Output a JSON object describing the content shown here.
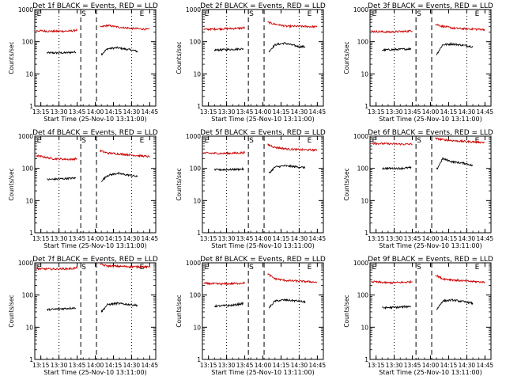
{
  "chart_data": [
    {
      "type": "line",
      "title": "Det 1f BLACK = Events, RED = LLD",
      "xlabel": "Start Time (25-Nov-10 13:11:00)",
      "ylabel": "Counts/sec",
      "yscale": "log",
      "ylim": [
        1,
        1000
      ],
      "xlim": [
        "13:10",
        "14:50"
      ],
      "xticks": [
        "13:15",
        "13:30",
        "13:45",
        "14:00",
        "14:15",
        "14:30",
        "14:45"
      ],
      "yticks": [
        "1",
        "10",
        "100",
        "1000"
      ],
      "grid": false,
      "markers": [
        {
          "label": "E",
          "time": "13:11"
        },
        {
          "label": "S",
          "time": "13:48"
        },
        {
          "label": "E",
          "time": "14:36"
        }
      ],
      "series": [
        {
          "name": "Events",
          "color": "#000000",
          "x": [
            "13:20",
            "13:35",
            "13:44",
            "14:05",
            "14:10",
            "14:18",
            "14:30",
            "14:35"
          ],
          "y": [
            45,
            45,
            48,
            40,
            60,
            65,
            55,
            50
          ]
        },
        {
          "name": "LLD",
          "color": "#cc0000",
          "x": [
            "13:11",
            "13:25",
            "13:40",
            "13:45",
            "14:04",
            "14:10",
            "14:20",
            "14:30",
            "14:45"
          ],
          "y": [
            220,
            210,
            215,
            230,
            280,
            320,
            280,
            260,
            240
          ]
        }
      ]
    },
    {
      "type": "line",
      "title": "Det 2f BLACK = Events, RED = LLD",
      "xlabel": "Start Time (25-Nov-10 13:11:00)",
      "ylabel": "Counts/sec",
      "yscale": "log",
      "ylim": [
        1,
        1000
      ],
      "xlim": [
        "13:10",
        "14:50"
      ],
      "xticks": [
        "13:15",
        "13:30",
        "13:45",
        "14:00",
        "14:15",
        "14:30",
        "14:45"
      ],
      "yticks": [
        "1",
        "10",
        "100",
        "1000"
      ],
      "grid": false,
      "markers": [
        {
          "label": "E",
          "time": "13:11"
        },
        {
          "label": "S",
          "time": "13:48"
        },
        {
          "label": "E",
          "time": "14:36"
        }
      ],
      "series": [
        {
          "name": "Events",
          "color": "#000000",
          "x": [
            "13:20",
            "13:35",
            "13:44",
            "14:05",
            "14:10",
            "14:18",
            "14:30",
            "14:35"
          ],
          "y": [
            55,
            58,
            60,
            50,
            80,
            90,
            70,
            70
          ]
        },
        {
          "name": "LLD",
          "color": "#cc0000",
          "x": [
            "13:11",
            "13:25",
            "13:40",
            "13:45",
            "14:04",
            "14:10",
            "14:20",
            "14:30",
            "14:45"
          ],
          "y": [
            240,
            250,
            260,
            270,
            400,
            350,
            300,
            300,
            290
          ]
        }
      ]
    },
    {
      "type": "line",
      "title": "Det 3f BLACK = Events, RED = LLD",
      "xlabel": "Start Time (25-Nov-10 13:11:00)",
      "ylabel": "Counts/sec",
      "yscale": "log",
      "ylim": [
        1,
        1000
      ],
      "xlim": [
        "13:10",
        "14:50"
      ],
      "xticks": [
        "13:15",
        "13:30",
        "13:45",
        "14:00",
        "14:15",
        "14:30",
        "14:45"
      ],
      "yticks": [
        "1",
        "10",
        "100",
        "1000"
      ],
      "grid": false,
      "markers": [
        {
          "label": "E",
          "time": "13:11"
        },
        {
          "label": "S",
          "time": "13:48"
        },
        {
          "label": "E",
          "time": "14:36"
        }
      ],
      "series": [
        {
          "name": "Events",
          "color": "#000000",
          "x": [
            "13:20",
            "13:35",
            "13:44",
            "14:05",
            "14:10",
            "14:18",
            "14:30",
            "14:35"
          ],
          "y": [
            55,
            58,
            60,
            40,
            80,
            85,
            75,
            70
          ]
        },
        {
          "name": "LLD",
          "color": "#cc0000",
          "x": [
            "13:11",
            "13:25",
            "13:40",
            "13:45",
            "14:04",
            "14:10",
            "14:20",
            "14:30",
            "14:45"
          ],
          "y": [
            210,
            200,
            210,
            220,
            350,
            300,
            260,
            250,
            240
          ]
        }
      ]
    },
    {
      "type": "line",
      "title": "Det 4f BLACK = Events, RED = LLD",
      "xlabel": "Start Time (25-Nov-10 13:11:00)",
      "ylabel": "Counts/sec",
      "yscale": "log",
      "ylim": [
        1,
        1000
      ],
      "xlim": [
        "13:10",
        "14:50"
      ],
      "xticks": [
        "13:15",
        "13:30",
        "13:45",
        "14:00",
        "14:15",
        "14:30",
        "14:45"
      ],
      "yticks": [
        "1",
        "10",
        "100",
        "1000"
      ],
      "grid": false,
      "markers": [
        {
          "label": "E",
          "time": "13:11"
        },
        {
          "label": "S",
          "time": "13:48"
        },
        {
          "label": "E",
          "time": "14:36"
        }
      ],
      "series": [
        {
          "name": "Events",
          "color": "#000000",
          "x": [
            "13:20",
            "13:35",
            "13:44",
            "14:05",
            "14:10",
            "14:18",
            "14:30",
            "14:35"
          ],
          "y": [
            45,
            48,
            50,
            40,
            60,
            70,
            60,
            55
          ]
        },
        {
          "name": "LLD",
          "color": "#cc0000",
          "x": [
            "13:11",
            "13:25",
            "13:40",
            "13:45",
            "14:04",
            "14:10",
            "14:20",
            "14:30",
            "14:45"
          ],
          "y": [
            250,
            200,
            190,
            200,
            350,
            300,
            280,
            260,
            230
          ]
        }
      ]
    },
    {
      "type": "line",
      "title": "Det 5f BLACK = Events, RED = LLD",
      "xlabel": "Start Time (25-Nov-10 13:11:00)",
      "ylabel": "Counts/sec",
      "yscale": "log",
      "ylim": [
        1,
        1000
      ],
      "xlim": [
        "13:10",
        "14:50"
      ],
      "xticks": [
        "13:15",
        "13:30",
        "13:45",
        "14:00",
        "14:15",
        "14:30",
        "14:45"
      ],
      "yticks": [
        "1",
        "10",
        "100",
        "1000"
      ],
      "grid": false,
      "markers": [
        {
          "label": "E",
          "time": "13:11"
        },
        {
          "label": "S",
          "time": "13:48"
        },
        {
          "label": "E",
          "time": "14:36"
        }
      ],
      "series": [
        {
          "name": "Events",
          "color": "#000000",
          "x": [
            "13:20",
            "13:35",
            "13:44",
            "14:05",
            "14:10",
            "14:18",
            "14:30",
            "14:35"
          ],
          "y": [
            90,
            92,
            95,
            70,
            110,
            120,
            110,
            105
          ]
        },
        {
          "name": "LLD",
          "color": "#cc0000",
          "x": [
            "13:11",
            "13:25",
            "13:40",
            "13:45",
            "14:04",
            "14:10",
            "14:20",
            "14:30",
            "14:45"
          ],
          "y": [
            300,
            290,
            300,
            310,
            550,
            450,
            400,
            380,
            370
          ]
        }
      ]
    },
    {
      "type": "line",
      "title": "Det 6f BLACK = Events, RED = LLD",
      "xlabel": "Start Time (25-Nov-10 13:11:00)",
      "ylabel": "Counts/sec",
      "yscale": "log",
      "ylim": [
        1,
        1000
      ],
      "xlim": [
        "13:10",
        "14:50"
      ],
      "xticks": [
        "13:15",
        "13:30",
        "13:45",
        "14:00",
        "14:15",
        "14:30",
        "14:45"
      ],
      "yticks": [
        "1",
        "10",
        "100",
        "1000"
      ],
      "grid": false,
      "markers": [
        {
          "label": "E",
          "time": "13:11"
        },
        {
          "label": "S",
          "time": "13:48"
        },
        {
          "label": "E",
          "time": "14:36"
        }
      ],
      "series": [
        {
          "name": "Events",
          "color": "#000000",
          "x": [
            "13:20",
            "13:35",
            "13:44",
            "14:05",
            "14:10",
            "14:18",
            "14:30",
            "14:35"
          ],
          "y": [
            100,
            100,
            105,
            90,
            200,
            160,
            140,
            120
          ]
        },
        {
          "name": "LLD",
          "color": "#cc0000",
          "x": [
            "13:11",
            "13:25",
            "13:40",
            "13:45",
            "14:04",
            "14:10",
            "14:20",
            "14:30",
            "14:45"
          ],
          "y": [
            600,
            580,
            560,
            570,
            850,
            780,
            720,
            680,
            640
          ]
        }
      ]
    },
    {
      "type": "line",
      "title": "Det 7f BLACK = Events, RED = LLD",
      "xlabel": "Start Time (25-Nov-10 13:11:00)",
      "ylabel": "Counts/sec",
      "yscale": "log",
      "ylim": [
        1,
        1000
      ],
      "xlim": [
        "13:10",
        "14:50"
      ],
      "xticks": [
        "13:15",
        "13:30",
        "13:45",
        "14:00",
        "14:15",
        "14:30",
        "14:45"
      ],
      "yticks": [
        "1",
        "10",
        "100",
        "1000"
      ],
      "grid": false,
      "markers": [
        {
          "label": "E",
          "time": "13:11"
        },
        {
          "label": "S",
          "time": "13:48"
        },
        {
          "label": "E",
          "time": "14:36"
        }
      ],
      "series": [
        {
          "name": "Events",
          "color": "#000000",
          "x": [
            "13:20",
            "13:35",
            "13:44",
            "14:05",
            "14:10",
            "14:18",
            "14:30",
            "14:35"
          ],
          "y": [
            35,
            38,
            40,
            30,
            50,
            55,
            50,
            48
          ]
        },
        {
          "name": "LLD",
          "color": "#cc0000",
          "x": [
            "13:11",
            "13:25",
            "13:40",
            "13:45",
            "14:04",
            "14:10",
            "14:20",
            "14:30",
            "14:45"
          ],
          "y": [
            650,
            640,
            660,
            700,
            900,
            800,
            780,
            760,
            740
          ]
        }
      ]
    },
    {
      "type": "line",
      "title": "Det 8f BLACK = Events, RED = LLD",
      "xlabel": "Start Time (25-Nov-10 13:11:00)",
      "ylabel": "Counts/sec",
      "yscale": "log",
      "ylim": [
        1,
        1000
      ],
      "xlim": [
        "13:10",
        "14:50"
      ],
      "xticks": [
        "13:15",
        "13:30",
        "13:45",
        "14:00",
        "14:15",
        "14:30",
        "14:45"
      ],
      "yticks": [
        "1",
        "10",
        "100",
        "1000"
      ],
      "grid": false,
      "markers": [
        {
          "label": "E",
          "time": "13:11"
        },
        {
          "label": "S",
          "time": "13:48"
        },
        {
          "label": "E",
          "time": "14:36"
        }
      ],
      "series": [
        {
          "name": "Events",
          "color": "#000000",
          "x": [
            "13:20",
            "13:35",
            "13:44",
            "14:05",
            "14:10",
            "14:18",
            "14:30",
            "14:35"
          ],
          "y": [
            45,
            48,
            55,
            40,
            65,
            70,
            65,
            60
          ]
        },
        {
          "name": "LLD",
          "color": "#cc0000",
          "x": [
            "13:11",
            "13:25",
            "13:40",
            "13:45",
            "14:04",
            "14:10",
            "14:20",
            "14:30",
            "14:45"
          ],
          "y": [
            230,
            220,
            230,
            240,
            450,
            320,
            280,
            270,
            250
          ]
        }
      ]
    },
    {
      "type": "line",
      "title": "Det 9f BLACK = Events, RED = LLD",
      "xlabel": "Start Time (25-Nov-10 13:11:00)",
      "ylabel": "Counts/sec",
      "yscale": "log",
      "ylim": [
        1,
        1000
      ],
      "xlim": [
        "13:10",
        "14:50"
      ],
      "xticks": [
        "13:15",
        "13:30",
        "13:45",
        "14:00",
        "14:15",
        "14:30",
        "14:45"
      ],
      "yticks": [
        "1",
        "10",
        "100",
        "1000"
      ],
      "grid": false,
      "markers": [
        {
          "label": "E",
          "time": "13:11"
        },
        {
          "label": "S",
          "time": "13:48"
        },
        {
          "label": "E",
          "time": "14:36"
        }
      ],
      "series": [
        {
          "name": "Events",
          "color": "#000000",
          "x": [
            "13:20",
            "13:35",
            "13:44",
            "14:05",
            "14:10",
            "14:18",
            "14:30",
            "14:35"
          ],
          "y": [
            40,
            42,
            45,
            35,
            65,
            70,
            60,
            55
          ]
        },
        {
          "name": "LLD",
          "color": "#cc0000",
          "x": [
            "13:11",
            "13:25",
            "13:40",
            "13:45",
            "14:04",
            "14:10",
            "14:20",
            "14:30",
            "14:45"
          ],
          "y": [
            260,
            240,
            250,
            260,
            420,
            320,
            290,
            270,
            250
          ]
        }
      ]
    }
  ]
}
